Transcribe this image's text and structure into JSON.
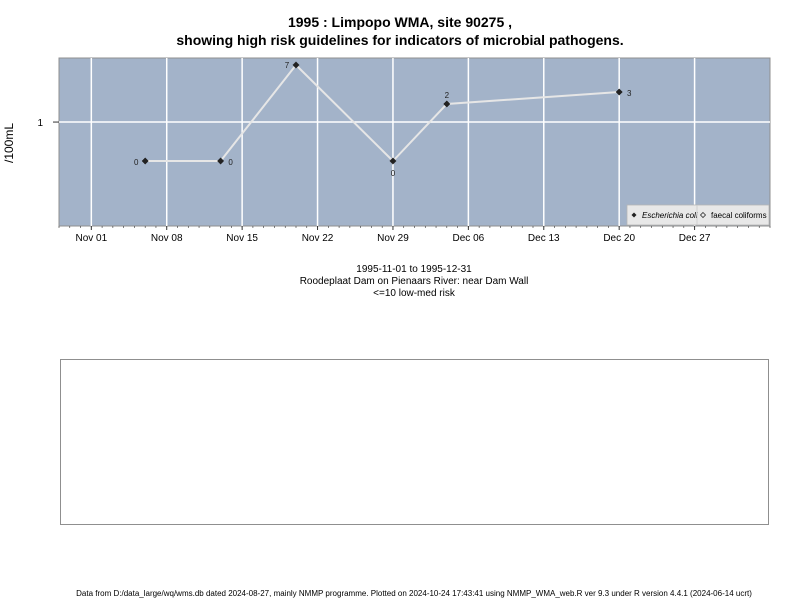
{
  "header": {
    "title_line1": "1995 : Limpopo WMA, site 90275 ,",
    "title_line2": "showing high risk guidelines for indicators of microbial pathogens."
  },
  "chart_data": {
    "type": "line",
    "ylabel": "/100mL",
    "xlabel": "",
    "x_ticks": [
      "Nov 01",
      "Nov 08",
      "Nov 15",
      "Nov 22",
      "Nov 29",
      "Dec 06",
      "Dec 13",
      "Dec 20",
      "Dec 27"
    ],
    "y_ticks": [
      "1"
    ],
    "grid": true,
    "legend_position": "bottom-right",
    "series": [
      {
        "name": "Escherichia coli",
        "marker": "filled-diamond",
        "points": [
          {
            "date": "1995-11-06",
            "value": 0,
            "label": "0"
          },
          {
            "date": "1995-11-13",
            "value": 0,
            "label": "0"
          },
          {
            "date": "1995-11-20",
            "value": 7,
            "label": "7"
          },
          {
            "date": "1995-11-29",
            "value": 0,
            "label": "0"
          },
          {
            "date": "1995-12-04",
            "value": 2,
            "label": "2"
          },
          {
            "date": "1995-12-20",
            "value": 3,
            "label": "3"
          }
        ]
      },
      {
        "name": "faecal coliforms",
        "marker": "open-diamond",
        "points": []
      }
    ]
  },
  "info": {
    "date_range": "1995-11-01 to 1995-12-31",
    "site_name": "Roodeplaat Dam on Pienaars River: near Dam Wall",
    "risk_note": "<=10 low-med risk"
  },
  "footer": {
    "text": "Data from D:/data_large/wq/wms.db dated 2024-08-27, mainly NMMP programme. Plotted on 2024-10-24 17:43:41 using NMMP_WMA_web.R ver 9.3 under R version 4.4.1 (2024-06-14 ucrt)"
  },
  "colors": {
    "panel_background": "#a3b3c9",
    "grid": "#ffffff",
    "series_line": "#e6e6e6",
    "marker": "#222222"
  }
}
